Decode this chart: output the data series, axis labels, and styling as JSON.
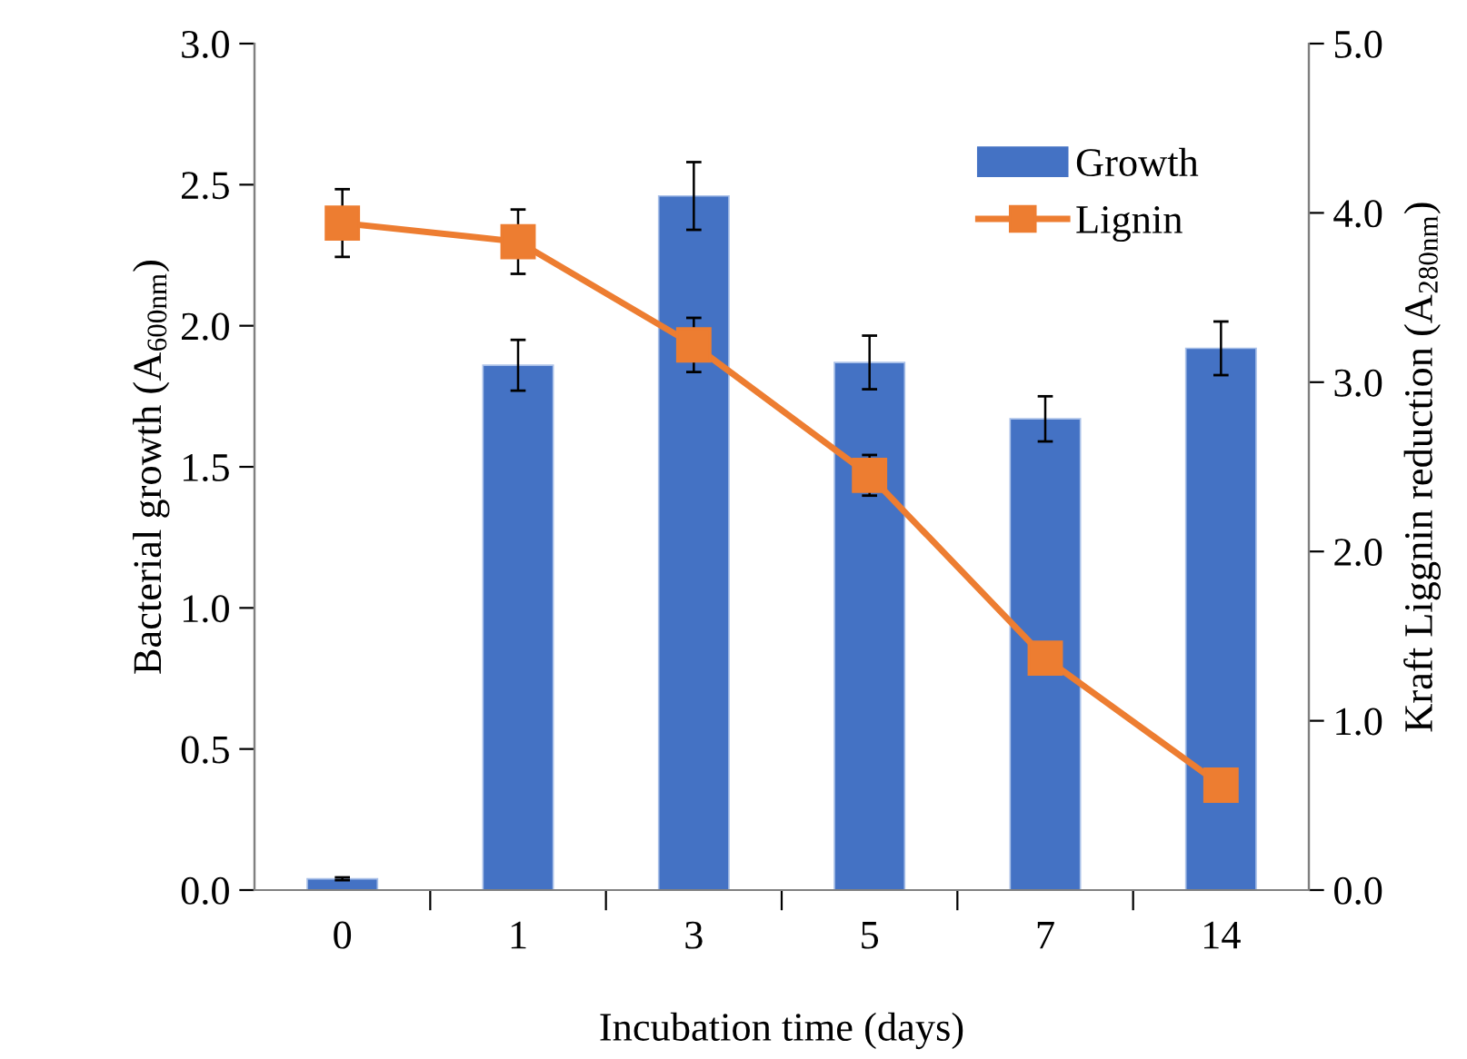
{
  "chart_data": {
    "type": "bar",
    "xlabel": "Incubation time (days)",
    "ylabel": "Bacterial growth (A$_{600nm}$)",
    "y2label": "Kraft Liggnin reduction (A$_{280nm}$)",
    "categories": [
      "0",
      "1",
      "3",
      "5",
      "7",
      "14"
    ],
    "series": [
      {
        "name": "Growth",
        "color": "#4472c4",
        "values": [
          0.04,
          1.86,
          2.46,
          1.87,
          1.67,
          1.92
        ],
        "errors": [
          0.005,
          0.09,
          0.12,
          0.095,
          0.08,
          0.095
        ]
      },
      {
        "name": "Lignin",
        "type": "line",
        "axis": "y2",
        "color": "#ed7d31",
        "marker": "square",
        "values": [
          3.94,
          3.83,
          3.22,
          2.45,
          1.37,
          0.62
        ],
        "errors": [
          0.2,
          0.19,
          0.16,
          0.12,
          null,
          null
        ]
      }
    ],
    "ylim": [
      0,
      3.0
    ],
    "yticks": [
      {
        "value": 0,
        "label": "0.0"
      },
      0.5,
      {
        "value": 1,
        "label": "1.0"
      },
      1.5,
      {
        "value": 2,
        "label": "2.0"
      },
      2.5,
      {
        "value": 3,
        "label": "3.0"
      }
    ],
    "y2lim": [
      0,
      5.0
    ],
    "y2ticks": [
      {
        "value": 0,
        "label": "0.0"
      },
      {
        "value": 1,
        "label": "1.0"
      },
      {
        "value": 2,
        "label": "2.0"
      },
      {
        "value": 3,
        "label": "3.0"
      },
      {
        "value": 4,
        "label": "4.0"
      },
      {
        "value": 5,
        "label": "5.0"
      }
    ],
    "legend": "top right",
    "grid": false
  }
}
